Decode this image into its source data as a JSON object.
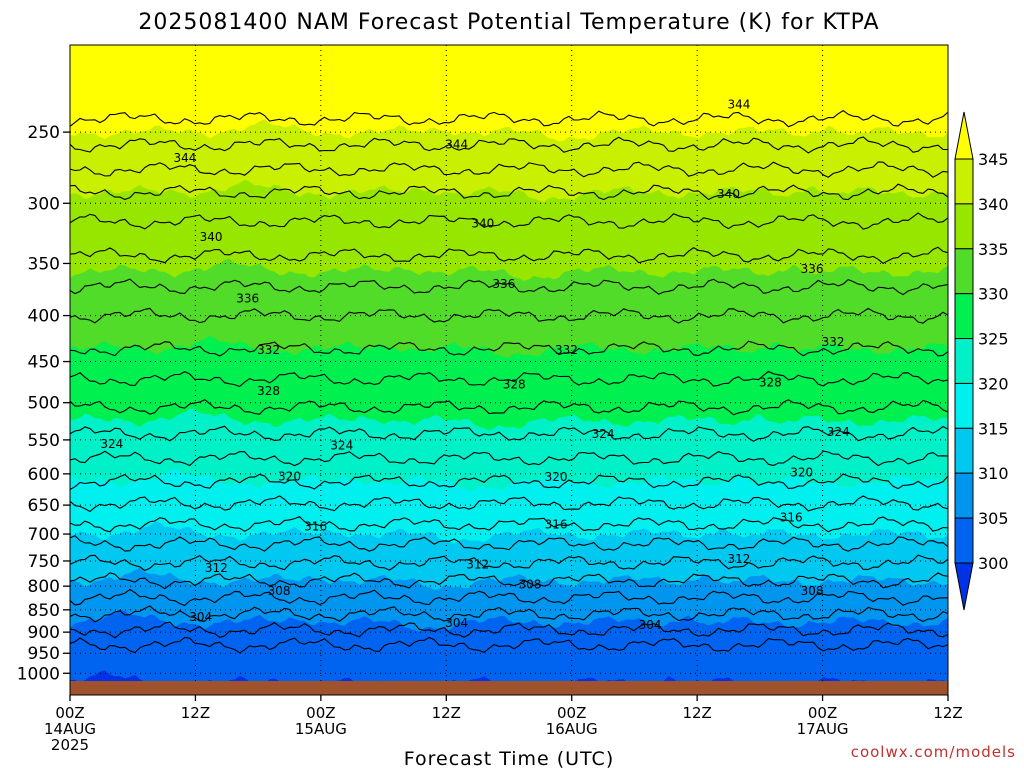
{
  "chart_data": {
    "type": "heatmap",
    "title": "2025081400 NAM Forecast Potential Temperature (K) for KTPA",
    "xlabel": "Forecast Time (UTC)",
    "ylabel": "",
    "credit": "coolwx.com/models",
    "x_ticks": [
      {
        "hour": 0,
        "l1": "00Z",
        "l2": "14AUG",
        "l3": "2025"
      },
      {
        "hour": 12,
        "l1": "12Z",
        "l2": "",
        "l3": ""
      },
      {
        "hour": 24,
        "l1": "00Z",
        "l2": "15AUG",
        "l3": ""
      },
      {
        "hour": 36,
        "l1": "12Z",
        "l2": "",
        "l3": ""
      },
      {
        "hour": 48,
        "l1": "00Z",
        "l2": "16AUG",
        "l3": ""
      },
      {
        "hour": 60,
        "l1": "12Z",
        "l2": "",
        "l3": ""
      },
      {
        "hour": 72,
        "l1": "00Z",
        "l2": "17AUG",
        "l3": ""
      },
      {
        "hour": 84,
        "l1": "12Z",
        "l2": "",
        "l3": ""
      }
    ],
    "xlim": [
      0,
      84
    ],
    "y_ticks": [
      "250",
      "300",
      "350",
      "400",
      "450",
      "500",
      "550",
      "600",
      "650",
      "700",
      "750",
      "800",
      "850",
      "900",
      "950",
      "1000"
    ],
    "y_tick_values": [
      250,
      300,
      350,
      400,
      450,
      500,
      550,
      600,
      650,
      700,
      750,
      800,
      850,
      900,
      950,
      1000
    ],
    "ylim": [
      1020,
      200
    ],
    "y_scale": "log",
    "grid": true,
    "ground_color": "#a0522d",
    "colorbar": {
      "levels": [
        "345",
        "340",
        "335",
        "330",
        "325",
        "320",
        "315",
        "310",
        "305",
        "300"
      ],
      "colors": [
        "#ffff00",
        "#c8f000",
        "#96e600",
        "#50dc28",
        "#00f050",
        "#00f0c8",
        "#00f0f0",
        "#00c8f0",
        "#0096f0",
        "#0064f0",
        "#0032e6"
      ]
    },
    "contour_labels": [
      {
        "text": "344",
        "x": 11,
        "p": 267
      },
      {
        "text": "344",
        "x": 37,
        "p": 258
      },
      {
        "text": "344",
        "x": 64,
        "p": 233
      },
      {
        "text": "340",
        "x": 13.5,
        "p": 327
      },
      {
        "text": "340",
        "x": 39.5,
        "p": 316
      },
      {
        "text": "340",
        "x": 63,
        "p": 293
      },
      {
        "text": "336",
        "x": 17,
        "p": 383
      },
      {
        "text": "336",
        "x": 41.5,
        "p": 369
      },
      {
        "text": "336",
        "x": 71,
        "p": 355
      },
      {
        "text": "332",
        "x": 19,
        "p": 437
      },
      {
        "text": "332",
        "x": 47.5,
        "p": 437
      },
      {
        "text": "332",
        "x": 73,
        "p": 428
      },
      {
        "text": "328",
        "x": 19,
        "p": 485
      },
      {
        "text": "328",
        "x": 42.5,
        "p": 477
      },
      {
        "text": "328",
        "x": 67,
        "p": 475
      },
      {
        "text": "324",
        "x": 4,
        "p": 556
      },
      {
        "text": "324",
        "x": 26,
        "p": 558
      },
      {
        "text": "324",
        "x": 51,
        "p": 542
      },
      {
        "text": "324",
        "x": 73.5,
        "p": 539
      },
      {
        "text": "320",
        "x": 21,
        "p": 604
      },
      {
        "text": "320",
        "x": 46.5,
        "p": 605
      },
      {
        "text": "320",
        "x": 70,
        "p": 598
      },
      {
        "text": "316",
        "x": 23.5,
        "p": 687
      },
      {
        "text": "316",
        "x": 46.5,
        "p": 683
      },
      {
        "text": "316",
        "x": 69,
        "p": 671
      },
      {
        "text": "312",
        "x": 14,
        "p": 764
      },
      {
        "text": "312",
        "x": 39,
        "p": 757
      },
      {
        "text": "312",
        "x": 64,
        "p": 746
      },
      {
        "text": "308",
        "x": 20,
        "p": 810
      },
      {
        "text": "308",
        "x": 44,
        "p": 797
      },
      {
        "text": "308",
        "x": 71,
        "p": 810
      },
      {
        "text": "304",
        "x": 12.5,
        "p": 866
      },
      {
        "text": "304",
        "x": 37,
        "p": 879
      },
      {
        "text": "304",
        "x": 55.5,
        "p": 884
      }
    ]
  }
}
